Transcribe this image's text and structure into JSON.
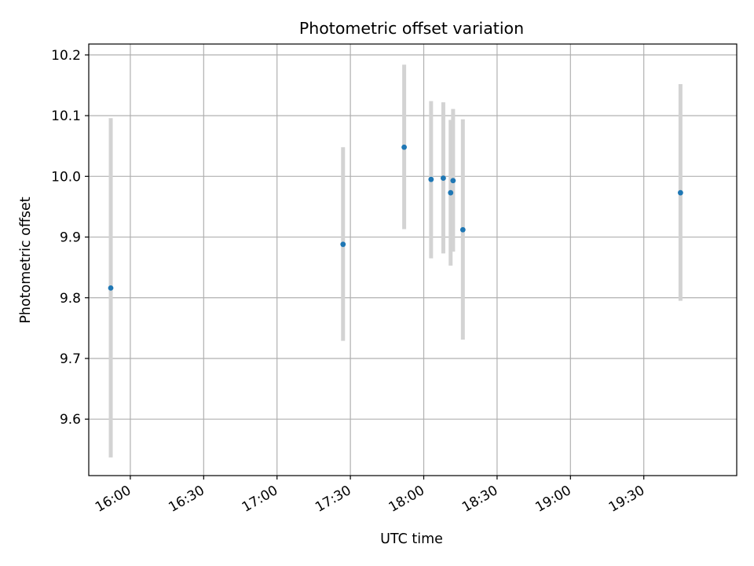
{
  "chart_data": {
    "type": "scatter",
    "title": "Photometric offset variation",
    "xlabel": "UTC time",
    "ylabel": "Photometric offset",
    "xlim": [
      "15:43",
      "20:08"
    ],
    "ylim": [
      9.507,
      10.218
    ],
    "grid": true,
    "x_ticks": [
      "16:00",
      "16:30",
      "17:00",
      "17:30",
      "18:00",
      "18:30",
      "19:00",
      "19:30"
    ],
    "y_ticks": [
      9.6,
      9.7,
      9.8,
      9.9,
      10.0,
      10.1,
      10.2
    ],
    "y_tick_labels": [
      "9.6",
      "9.7",
      "9.8",
      "9.9",
      "10.0",
      "10.1",
      "10.2"
    ],
    "series": [
      {
        "points": [
          {
            "x": "15:52",
            "y": 9.816,
            "ylow": 9.537,
            "yhigh": 10.096
          },
          {
            "x": "17:27",
            "y": 9.888,
            "ylow": 9.729,
            "yhigh": 10.048
          },
          {
            "x": "17:52",
            "y": 10.048,
            "ylow": 9.913,
            "yhigh": 10.184
          },
          {
            "x": "18:03",
            "y": 9.995,
            "ylow": 9.865,
            "yhigh": 10.124
          },
          {
            "x": "18:08",
            "y": 9.997,
            "ylow": 9.873,
            "yhigh": 10.122
          },
          {
            "x": "18:11",
            "y": 9.973,
            "ylow": 9.853,
            "yhigh": 10.093
          },
          {
            "x": "18:12",
            "y": 9.993,
            "ylow": 9.876,
            "yhigh": 10.111
          },
          {
            "x": "18:16",
            "y": 9.912,
            "ylow": 9.731,
            "yhigh": 10.094
          },
          {
            "x": "19:45",
            "y": 9.973,
            "ylow": 9.795,
            "yhigh": 10.152
          }
        ]
      }
    ],
    "colors": {
      "point": "#1f77b4",
      "errorbar": "#d3d3d3",
      "grid": "#b0b0b0",
      "frame": "#000000"
    }
  }
}
